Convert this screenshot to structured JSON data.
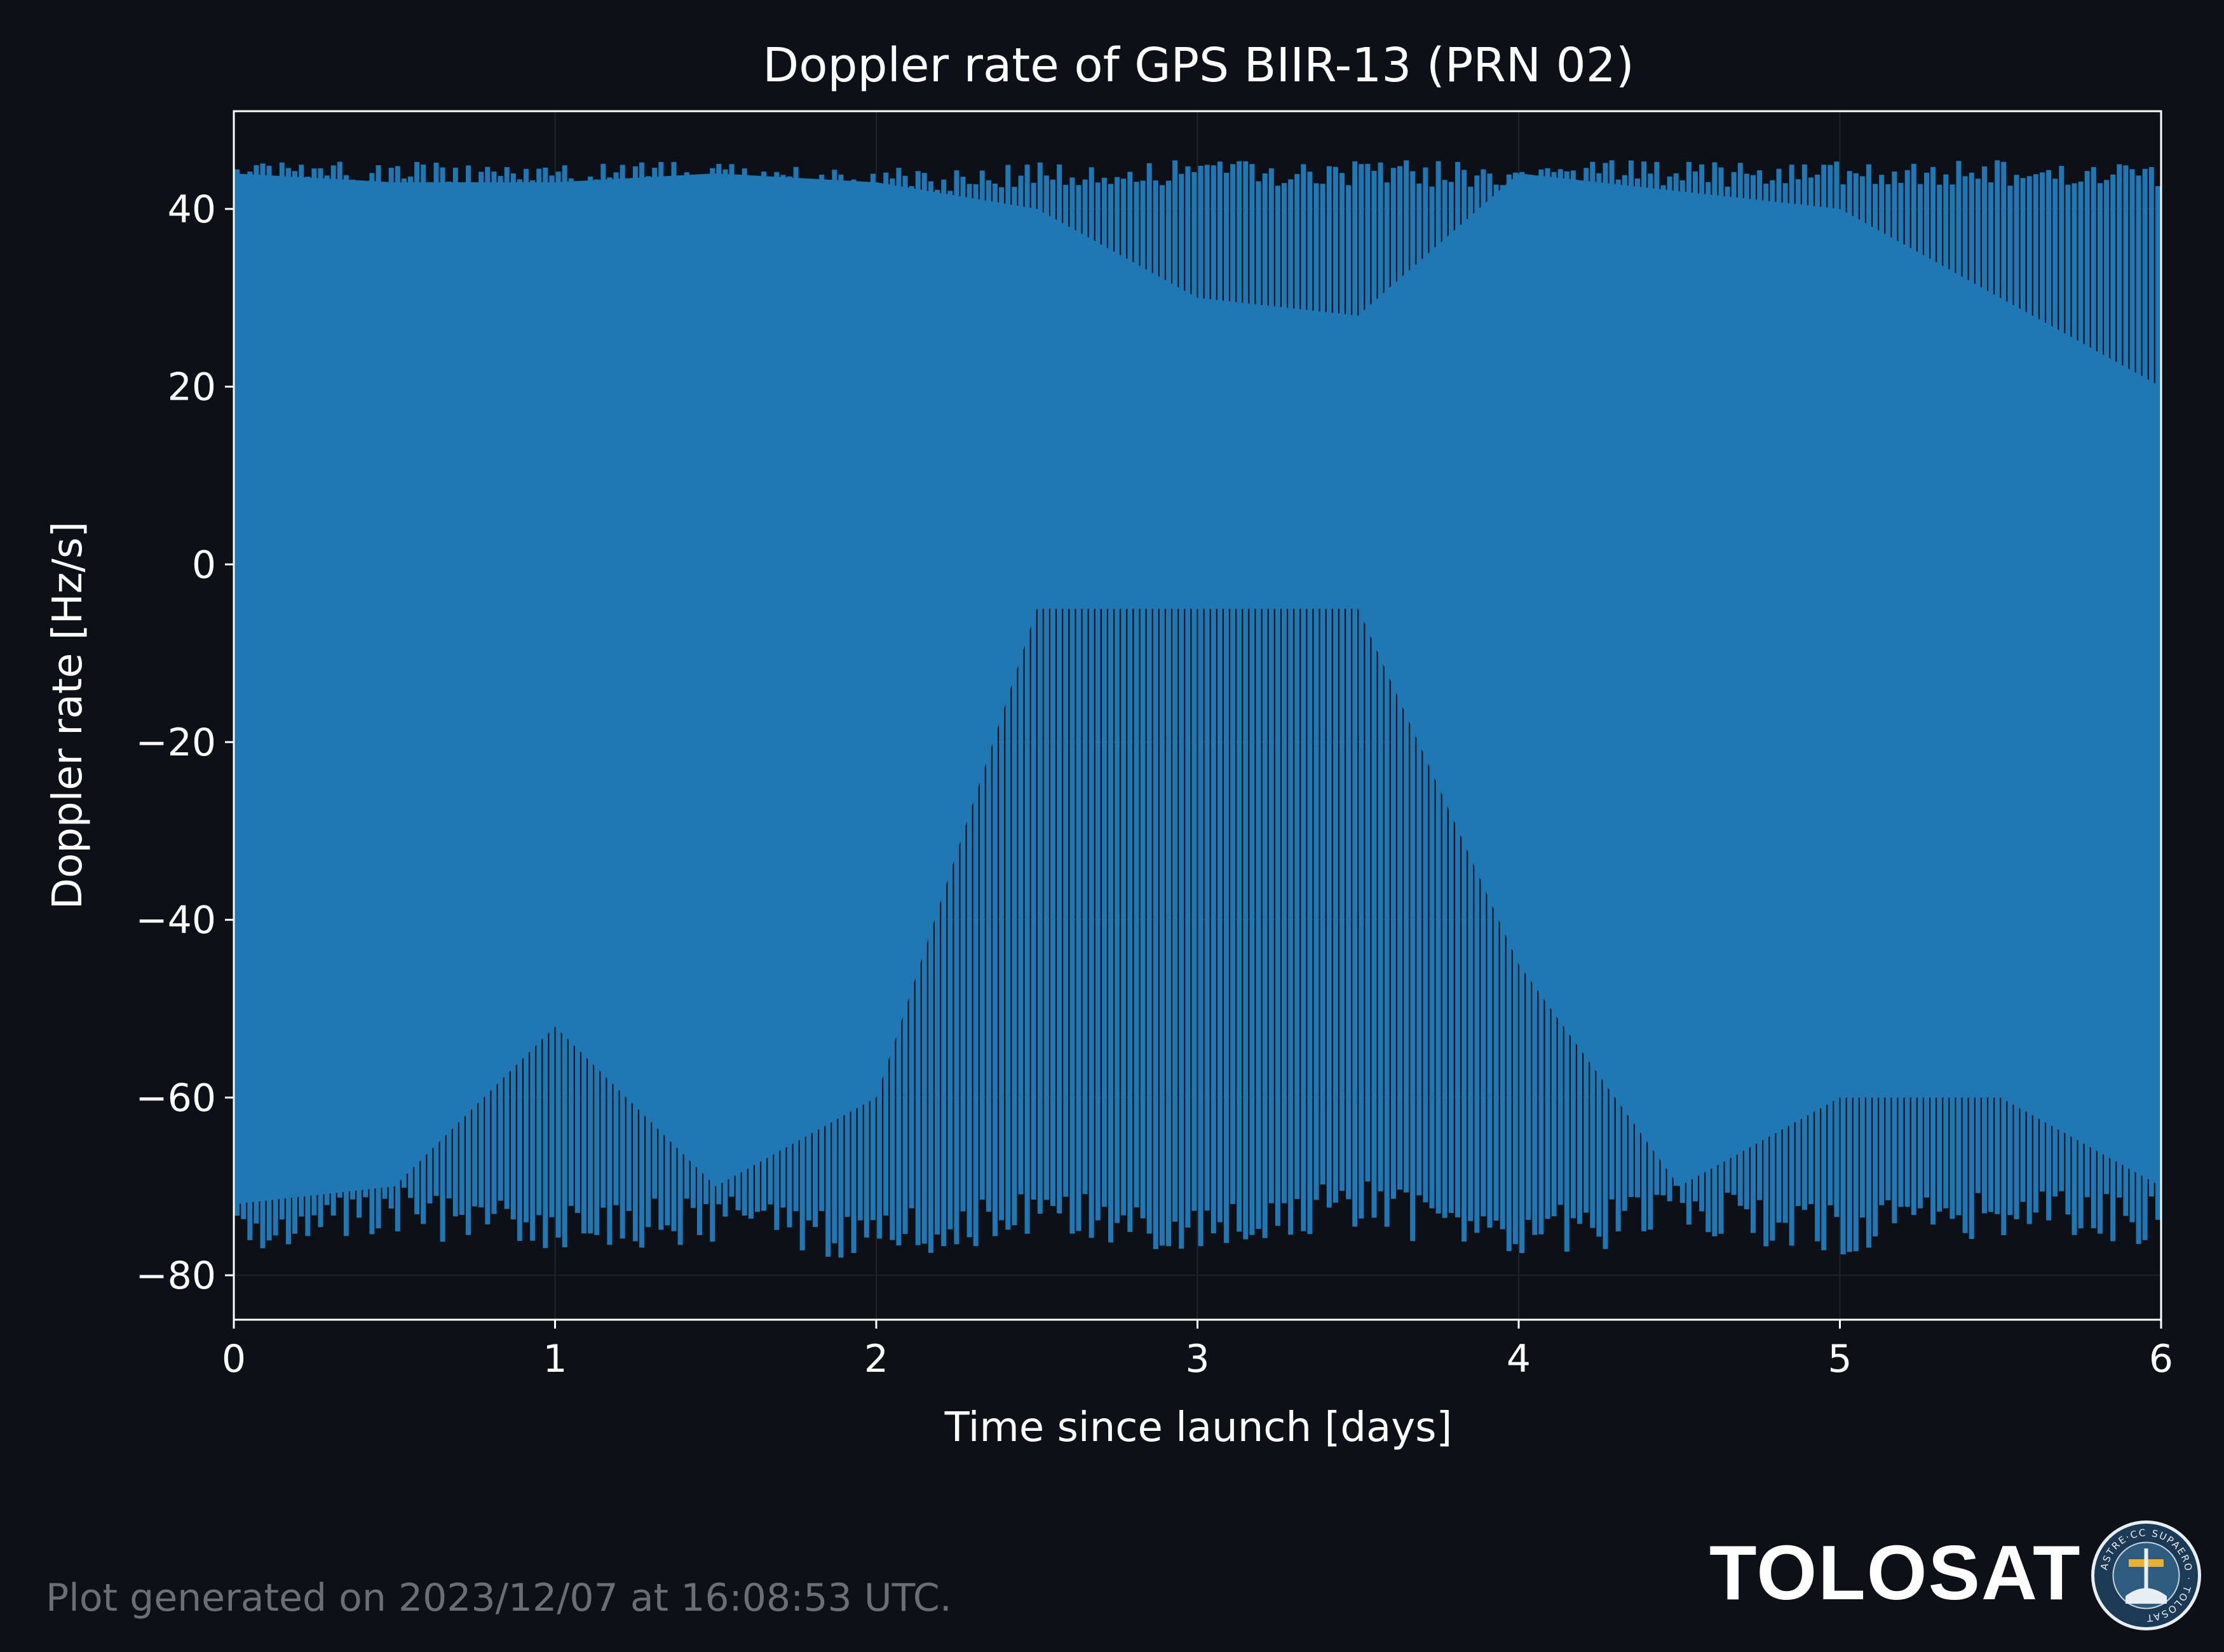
{
  "chart_data": {
    "type": "line",
    "title": "Doppler rate of GPS BIIR-13 (PRN 02)",
    "xlabel": "Time since launch [days]",
    "ylabel": "Doppler rate [Hz/s]",
    "xlim": [
      0,
      6
    ],
    "ylim": [
      -85,
      51
    ],
    "xticks": [
      0,
      1,
      2,
      3,
      4,
      5,
      6
    ],
    "yticks": [
      -80,
      -60,
      -40,
      -20,
      0,
      20,
      40
    ],
    "xtick_labels": [
      "0",
      "1",
      "2",
      "3",
      "4",
      "5",
      "6"
    ],
    "ytick_labels": [
      "−80",
      "−60",
      "−40",
      "−20",
      "0",
      "20",
      "40"
    ],
    "grid": true,
    "legend": "none",
    "series": [
      {
        "color": "#1f77b4",
        "description_points": {
          "x": [
            0.0,
            0.5,
            1.0,
            1.5,
            2.0,
            2.5,
            3.0,
            3.5,
            4.0,
            4.5,
            5.0,
            5.5,
            6.0
          ],
          "max": [
            44,
            44,
            44,
            44,
            43,
            44,
            44,
            44,
            44,
            44,
            44,
            44,
            44
          ],
          "min": [
            -76,
            -74,
            -76,
            -75,
            -77,
            -74,
            -77,
            -73,
            -77,
            -74,
            -76,
            -74,
            -75
          ],
          "lower_band_edge": [
            -72,
            -70,
            -52,
            -70,
            -60,
            -5,
            -5,
            -5,
            -45,
            -70,
            -60,
            -60,
            -70
          ],
          "upper_band_edge": [
            44,
            43,
            43,
            44,
            43,
            40,
            30,
            28,
            44,
            42,
            40,
            30,
            20
          ]
        }
      }
    ]
  },
  "footer": {
    "generated_note": "Plot generated on 2023/12/07 at 16:08:53 UTC.",
    "brand": "TOLOSAT",
    "seal_text": "ASTRE·CC SUPAERO · TOLOSAT"
  },
  "colors": {
    "background": "#0d1017",
    "axes": "#ffffff",
    "series": "#1f77b4",
    "grid": "#1f232a"
  }
}
